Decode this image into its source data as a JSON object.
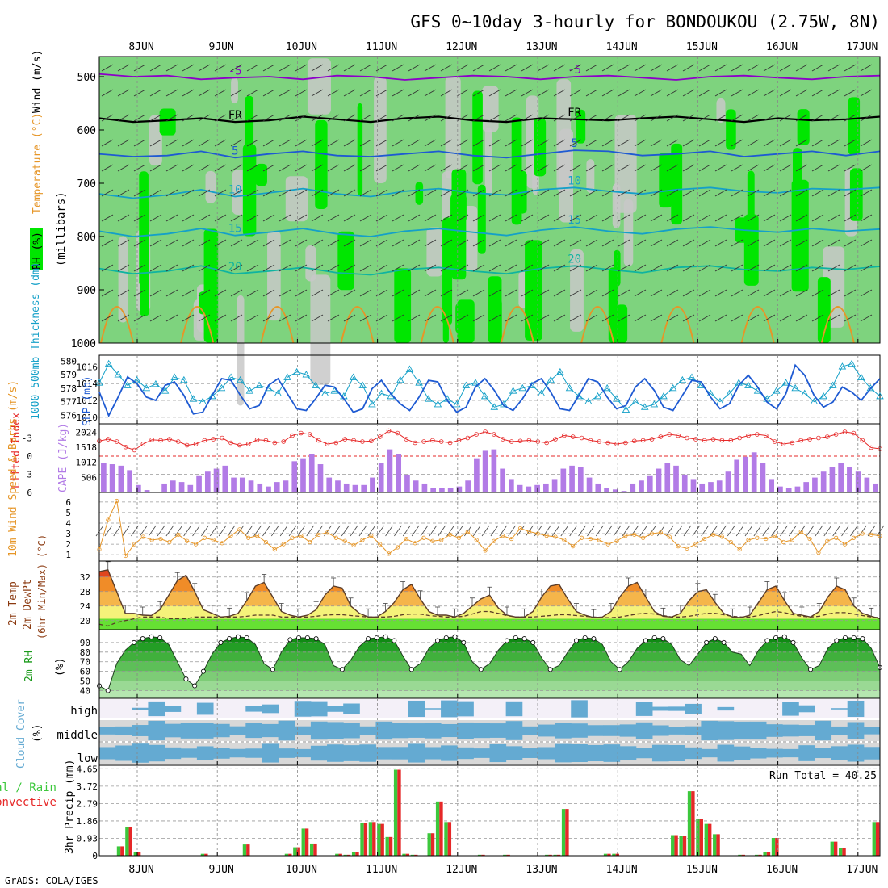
{
  "title": "GFS 0~10day 3-hourly for BONDOUKOU (2.75W, 8N)",
  "footer": "GrADS: COLA/IGES",
  "dates": [
    "8JUN",
    "9JUN",
    "10JUN",
    "11JUN",
    "12JUN",
    "13JUN",
    "14JUN",
    "15JUN",
    "16JUN",
    "17JUN"
  ],
  "colors": {
    "rh_light": "#c8c8c8",
    "rh_mid": "#7ed37e",
    "rh_high": "#00e600",
    "temp_purple": "#8c00c8",
    "temp_blue": "#1e5ad2",
    "temp_cyan": "#14a0c8",
    "temp_teal": "#0fb4a0",
    "temp_orange": "#e69628",
    "precip_green": "#3cc83c",
    "precip_red": "#e62828",
    "cloud": "#64aad2",
    "cloud_bg": "#d8d8d8"
  },
  "chart_data": [
    {
      "type": "heatmap",
      "name_printed": "RH (%)",
      "ylabels": [
        "Wind (m/s)",
        "Temperature (°C)",
        "RH (%)",
        "(millibars)"
      ],
      "ylim": [
        1000,
        450
      ],
      "yticks": [
        500,
        600,
        700,
        800,
        900,
        1000
      ],
      "isotherms": [
        {
          "label": "-5",
          "p": [
            495,
            500,
            498,
            505,
            502,
            500,
            505,
            498,
            500,
            506,
            502,
            498,
            500,
            505,
            500,
            498,
            502,
            506,
            500,
            498,
            502,
            505,
            500,
            498
          ]
        },
        {
          "label": "FR",
          "p": [
            578,
            585,
            582,
            578,
            585,
            582,
            575,
            580,
            585,
            578,
            575,
            582,
            585,
            578,
            580,
            582,
            578,
            575,
            580,
            585,
            578,
            582,
            580,
            575
          ]
        },
        {
          "label": "5",
          "p": [
            645,
            650,
            648,
            640,
            652,
            645,
            640,
            648,
            650,
            645,
            640,
            648,
            652,
            645,
            638,
            640,
            648,
            645,
            640,
            650,
            645,
            640,
            648,
            640
          ]
        },
        {
          "label": "10",
          "p": [
            720,
            728,
            722,
            712,
            725,
            718,
            710,
            720,
            725,
            715,
            710,
            718,
            722,
            712,
            708,
            715,
            720,
            712,
            708,
            715,
            718,
            710,
            712,
            708
          ]
        },
        {
          "label": "15",
          "p": [
            790,
            800,
            795,
            785,
            798,
            792,
            785,
            795,
            800,
            790,
            785,
            792,
            798,
            788,
            782,
            790,
            795,
            786,
            782,
            788,
            792,
            785,
            790,
            786
          ]
        },
        {
          "label": "20",
          "p": [
            860,
            870,
            865,
            855,
            870,
            865,
            858,
            868,
            872,
            862,
            858,
            865,
            870,
            860,
            855,
            862,
            868,
            858,
            855,
            862,
            865,
            858,
            862,
            856
          ]
        }
      ]
    },
    {
      "type": "line",
      "ylabel_left": "1000-500mb Thickness (dm)",
      "ylabel_right": "SLP (mb)",
      "yticks_left": [
        576,
        577,
        578,
        579,
        580
      ],
      "yticks_right": [
        1010,
        1012,
        1014,
        1016
      ],
      "series": [
        {
          "name_printed": "1000-500mb Thickness",
          "axis": "left",
          "values": [
            578.4,
            579.8,
            579.0,
            578.2,
            578.6,
            578.0,
            578.3,
            577.8,
            578.8,
            578.6,
            577.2,
            577.0,
            577.4,
            578.0,
            578.8,
            578.6,
            577.8,
            578.2,
            578.0,
            577.6,
            578.8,
            579.2,
            579.0,
            578.2,
            577.6,
            577.8,
            577.4,
            578.8,
            578.2,
            576.8,
            577.6,
            577.4,
            578.6,
            579.4,
            578.4,
            577.2,
            576.8,
            577.2,
            576.8,
            578.2,
            578.4,
            577.4,
            576.6,
            576.8,
            577.8,
            578.0,
            578.2,
            577.6,
            578.6,
            579.2,
            578.0,
            577.4,
            577.0,
            577.4,
            578.0,
            577.2,
            576.4,
            577.0,
            576.6,
            576.8,
            577.4,
            578.0,
            578.6,
            578.8,
            578.2,
            577.6,
            577.0,
            577.6,
            578.4,
            578.2,
            577.8,
            577.2,
            577.8,
            578.4,
            578.0,
            577.6,
            577.0,
            577.4,
            578.2,
            579.6,
            579.8,
            578.8,
            578.0,
            577.4
          ]
        },
        {
          "name_printed": "SLP",
          "axis": "right",
          "values": [
            1013.0,
            1010.2,
            1012.4,
            1014.8,
            1014.0,
            1012.4,
            1012.0,
            1013.8,
            1014.2,
            1012.6,
            1010.4,
            1010.6,
            1012.6,
            1014.6,
            1014.4,
            1012.6,
            1011.0,
            1011.4,
            1013.8,
            1014.6,
            1012.8,
            1011.0,
            1010.8,
            1012.2,
            1013.8,
            1013.6,
            1012.2,
            1010.6,
            1011.0,
            1013.4,
            1014.4,
            1012.8,
            1011.6,
            1010.8,
            1012.4,
            1014.4,
            1014.2,
            1012.0,
            1010.6,
            1011.2,
            1013.6,
            1014.6,
            1013.2,
            1011.4,
            1010.8,
            1012.2,
            1014.0,
            1014.6,
            1013.0,
            1011.0,
            1010.8,
            1012.6,
            1014.6,
            1014.2,
            1012.4,
            1011.0,
            1011.4,
            1013.6,
            1014.6,
            1013.2,
            1011.2,
            1010.8,
            1012.6,
            1014.4,
            1014.2,
            1012.4,
            1011.0,
            1011.6,
            1013.8,
            1015.0,
            1013.6,
            1011.8,
            1011.0,
            1012.8,
            1016.2,
            1015.0,
            1012.6,
            1011.2,
            1011.8,
            1013.6,
            1013.0,
            1012.0,
            1013.4,
            1014.6
          ]
        }
      ]
    },
    {
      "type": "bar",
      "ylabel_left": "Lifted Index",
      "ylabel_right": "CAPE (J/kg)",
      "yticks_left": [
        "-3",
        "0",
        "3",
        "6"
      ],
      "yticks_right": [
        506,
        1012,
        1518,
        2024
      ],
      "series": [
        {
          "name_printed": "CAPE",
          "values": [
            1000,
            950,
            900,
            750,
            250,
            80,
            0,
            300,
            400,
            350,
            250,
            550,
            700,
            800,
            900,
            500,
            500,
            400,
            300,
            200,
            350,
            400,
            1050,
            1150,
            1300,
            950,
            500,
            400,
            300,
            250,
            250,
            500,
            1000,
            1450,
            1300,
            600,
            400,
            300,
            150,
            150,
            150,
            200,
            400,
            1150,
            1400,
            1450,
            800,
            450,
            250,
            200,
            250,
            300,
            450,
            800,
            900,
            850,
            500,
            300,
            150,
            100,
            50,
            300,
            400,
            550,
            800,
            1000,
            900,
            600,
            450,
            300,
            350,
            400,
            700,
            1100,
            1200,
            1350,
            1000,
            450,
            200,
            150,
            200,
            350,
            500,
            700,
            850,
            1000,
            850,
            700,
            500,
            300
          ]
        },
        {
          "name_printed": "Lifted Index",
          "values": [
            -2.5,
            -2.8,
            -2.4,
            -1.5,
            -1.0,
            -2.0,
            -2.7,
            -2.6,
            -2.8,
            -2.4,
            -1.8,
            -2.0,
            -2.6,
            -2.8,
            -3.0,
            -2.2,
            -1.8,
            -2.0,
            -2.7,
            -2.6,
            -2.2,
            -2.4,
            -3.4,
            -3.8,
            -3.6,
            -2.6,
            -2.0,
            -2.2,
            -2.8,
            -2.6,
            -2.4,
            -2.5,
            -3.2,
            -4.2,
            -3.8,
            -2.8,
            -2.2,
            -2.4,
            -2.6,
            -2.4,
            -2.2,
            -2.6,
            -3.0,
            -3.6,
            -4.0,
            -3.6,
            -2.8,
            -2.4,
            -2.5,
            -2.6,
            -2.4,
            -2.2,
            -2.8,
            -3.4,
            -3.2,
            -3.0,
            -2.6,
            -2.4,
            -2.2,
            -2.0,
            -2.2,
            -2.5,
            -2.6,
            -2.8,
            -3.2,
            -3.6,
            -3.4,
            -3.0,
            -2.8,
            -2.6,
            -2.8,
            -2.6,
            -2.6,
            -3.0,
            -3.4,
            -3.6,
            -3.4,
            -2.4,
            -2.0,
            -2.2,
            -2.6,
            -2.8,
            -3.0,
            -3.2,
            -3.6,
            -4.0,
            -3.8,
            -2.6,
            -1.4,
            -1.2
          ]
        }
      ]
    },
    {
      "type": "line",
      "ylabel": "10m Wind Speed & Barbs (m/s)",
      "yticks": [
        1,
        2,
        3,
        4,
        5,
        6
      ],
      "values": [
        1.5,
        4.3,
        6.1,
        0.9,
        2.0,
        2.7,
        2.4,
        2.5,
        2.2,
        2.9,
        2.3,
        2.0,
        2.6,
        2.4,
        2.1,
        2.8,
        3.4,
        2.6,
        2.8,
        2.2,
        1.5,
        2.0,
        2.6,
        2.8,
        2.2,
        2.9,
        3.1,
        2.6,
        2.3,
        1.9,
        2.4,
        2.8,
        2.0,
        1.1,
        1.7,
        2.5,
        2.1,
        2.6,
        2.3,
        2.4,
        2.9,
        2.6,
        3.2,
        2.4,
        1.4,
        2.3,
        2.8,
        2.5,
        3.5,
        3.2,
        3.0,
        2.8,
        2.7,
        2.4,
        1.8,
        2.6,
        2.5,
        2.4,
        2.0,
        2.3,
        2.8,
        2.9,
        2.6,
        3.0,
        3.1,
        2.7,
        1.8,
        1.6,
        2.0,
        2.5,
        2.9,
        2.7,
        2.2,
        1.5,
        2.4,
        2.6,
        2.5,
        2.8,
        2.2,
        2.4,
        3.2,
        2.5,
        1.2,
        2.3,
        2.6,
        2.0,
        2.6,
        3.0,
        2.9,
        2.8
      ]
    },
    {
      "type": "area",
      "ylabel": "2m Temp 2m DewPt (6hr Min/Max) (°C)",
      "yticks": [
        20,
        24,
        28,
        32
      ],
      "series": [
        {
          "name_printed": "2m Temp",
          "values": [
            33.5,
            34.0,
            28.0,
            22.0,
            22.0,
            21.5,
            21.4,
            23.0,
            27.0,
            31.0,
            32.5,
            28.0,
            23.0,
            22.0,
            21.0,
            21.2,
            22.0,
            25.5,
            29.5,
            30.5,
            26.5,
            22.5,
            21.5,
            21.0,
            21.5,
            23.0,
            27.0,
            29.5,
            29.0,
            24.0,
            22.0,
            21.0,
            21.0,
            22.5,
            25.0,
            28.5,
            30.0,
            26.0,
            22.5,
            21.5,
            21.5,
            21.0,
            22.0,
            24.0,
            26.0,
            27.0,
            23.5,
            21.5,
            21.0,
            21.0,
            22.5,
            26.5,
            29.5,
            30.0,
            26.0,
            22.5,
            21.5,
            20.8,
            21.0,
            22.5,
            26.5,
            29.5,
            30.5,
            26.5,
            22.5,
            21.2,
            21.0,
            22.0,
            25.5,
            28.0,
            28.5,
            25.0,
            22.0,
            21.0,
            20.8,
            21.5,
            25.0,
            28.5,
            29.5,
            25.5,
            22.0,
            21.5,
            21.0,
            22.5,
            26.5,
            29.5,
            28.5,
            24.0,
            22.0,
            21.2,
            20.5
          ]
        },
        {
          "name_printed": "2m DewPt",
          "values": [
            19.0,
            18.5,
            19.5,
            20.0,
            20.5,
            21.0,
            21.0,
            21.0,
            20.5,
            20.5,
            20.5,
            21.0,
            21.0,
            21.0,
            21.0,
            21.0,
            21.0,
            21.2,
            21.5,
            21.5,
            21.5,
            21.0,
            21.0,
            21.0,
            21.0,
            21.2,
            21.5,
            21.6,
            21.6,
            21.4,
            21.2,
            21.0,
            21.0,
            21.0,
            21.2,
            21.6,
            21.8,
            21.8,
            21.4,
            21.2,
            21.0,
            21.0,
            21.2,
            21.8,
            22.5,
            22.5,
            22.0,
            21.4,
            21.0,
            21.0,
            21.0,
            21.2,
            21.4,
            21.6,
            21.6,
            21.4,
            21.2,
            21.0,
            20.8,
            20.8,
            21.0,
            21.4,
            21.8,
            22.0,
            21.8,
            21.4,
            21.0,
            21.0,
            21.2,
            21.6,
            22.0,
            22.0,
            21.6,
            21.2,
            21.0,
            21.0,
            21.4,
            22.0,
            22.5,
            22.2,
            21.6,
            21.2,
            21.0,
            21.2,
            21.8,
            22.2,
            22.2,
            21.8,
            21.4,
            21.0,
            20.8
          ]
        }
      ]
    },
    {
      "type": "area",
      "ylabel": "2m RH (%)",
      "yticks": [
        40,
        50,
        60,
        70,
        80,
        90
      ],
      "values": [
        45,
        40,
        68,
        82,
        90,
        94,
        96,
        95,
        88,
        70,
        52,
        45,
        60,
        78,
        90,
        94,
        96,
        95,
        88,
        68,
        62,
        80,
        93,
        95,
        95,
        94,
        88,
        66,
        62,
        72,
        86,
        94,
        95,
        96,
        92,
        76,
        62,
        68,
        84,
        92,
        95,
        96,
        90,
        70,
        62,
        68,
        82,
        92,
        95,
        94,
        90,
        74,
        62,
        66,
        80,
        92,
        95,
        94,
        88,
        70,
        62,
        70,
        84,
        92,
        95,
        94,
        88,
        72,
        66,
        78,
        90,
        94,
        90,
        80,
        78,
        66,
        82,
        92,
        95,
        96,
        90,
        74,
        62,
        66,
        84,
        92,
        95,
        95,
        94,
        84,
        64
      ]
    },
    {
      "type": "bar",
      "ylabel": "Cloud Cover (%)",
      "levels": [
        "high",
        "middle",
        "low"
      ]
    },
    {
      "type": "bar",
      "ylabel_left": "Total / Rain Convective",
      "ylabel": "3hr Precip (mm)",
      "yticks": [
        0,
        0.93,
        1.86,
        2.79,
        3.72,
        4.65
      ],
      "run_total_label": "Run Total = 40.25",
      "values": [
        0,
        0,
        0.5,
        1.55,
        0.2,
        0,
        0,
        0,
        0,
        0,
        0,
        0,
        0.1,
        0,
        0,
        0,
        0,
        0.6,
        0,
        0,
        0,
        0,
        0.1,
        0.45,
        1.45,
        0.65,
        0,
        0,
        0.1,
        0.05,
        0.2,
        1.75,
        1.8,
        1.7,
        1.0,
        4.6,
        0.1,
        0.05,
        0,
        1.2,
        2.9,
        1.8,
        0,
        0,
        0,
        0.05,
        0,
        0,
        0.05,
        0,
        0,
        0,
        0,
        0.05,
        0.05,
        2.5,
        0,
        0,
        0,
        0,
        0.1,
        0.1,
        0,
        0,
        0,
        0,
        0,
        0,
        1.1,
        1.05,
        3.45,
        1.95,
        1.7,
        1.15,
        0,
        0,
        0.05,
        0,
        0.05,
        0.2,
        0.95,
        0,
        0,
        0,
        0,
        0,
        0,
        0.75,
        0.4,
        0,
        0,
        0,
        1.8
      ]
    }
  ]
}
